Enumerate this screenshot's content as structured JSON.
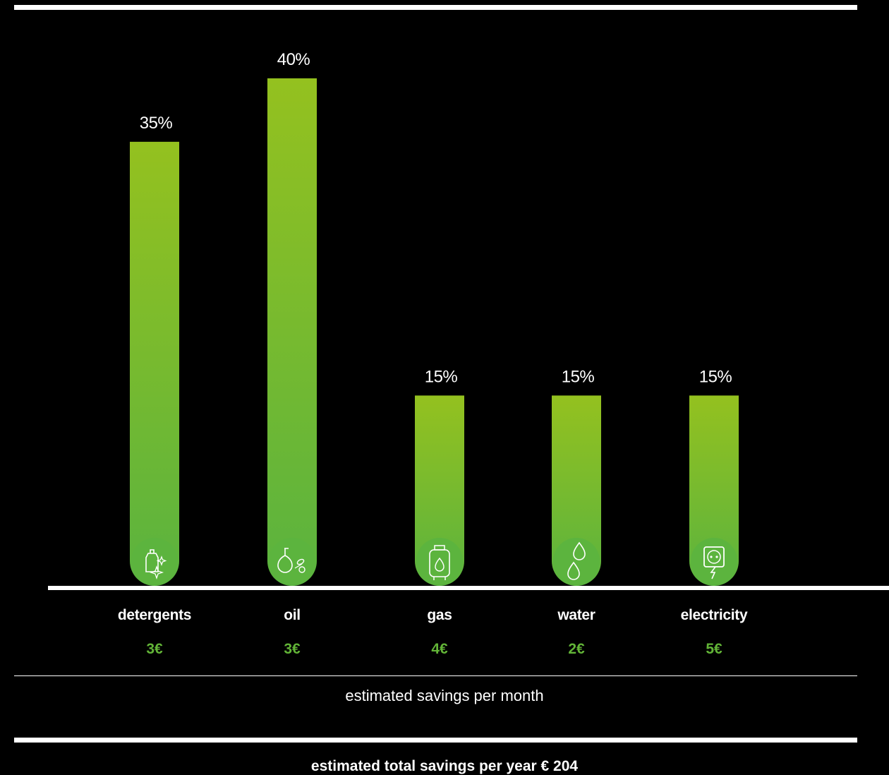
{
  "chart_data": {
    "type": "bar",
    "categories": [
      "detergents",
      "oil",
      "gas",
      "water",
      "electricity"
    ],
    "values": [
      35,
      40,
      15,
      15,
      15
    ],
    "value_labels": [
      "35%",
      "40%",
      "15%",
      "15%",
      "15%"
    ],
    "monthly_savings": [
      "3€",
      "3€",
      "4€",
      "2€",
      "5€"
    ],
    "icons": [
      "spray-bottle-icon",
      "oil-bottle-icon",
      "gas-cylinder-icon",
      "water-drops-icon",
      "power-socket-icon"
    ],
    "ylim": [
      0,
      40
    ],
    "colors": {
      "bar_top": "#94c11f",
      "bar_bottom": "#5ab33f",
      "value_text": "#62b437"
    }
  },
  "labels": {
    "monthly_caption": "estimated savings per month",
    "total_caption": "estimated total savings per year € 204"
  }
}
